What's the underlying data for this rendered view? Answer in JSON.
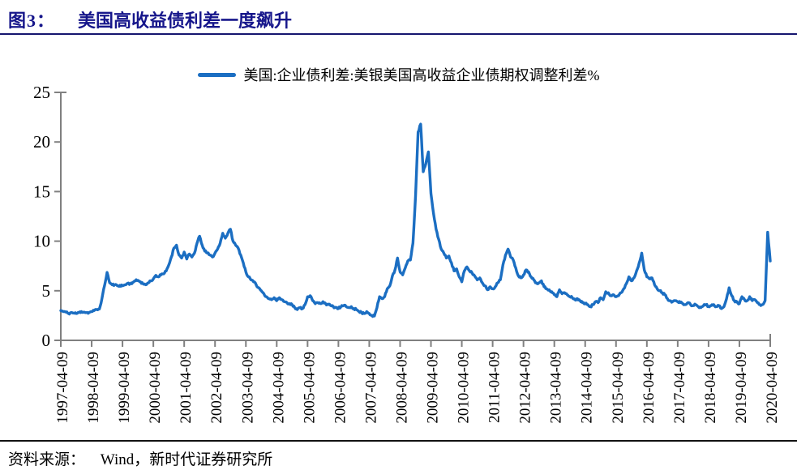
{
  "page": {
    "figure_label": "图3：",
    "title": "美国高收益债利差一度飙升",
    "source_label": "资料来源：",
    "source_text": "Wind，新时代证券研究所"
  },
  "legend": {
    "series_label": "美国:企业债利差:美银美国高收益企业债期权调整利差%"
  },
  "colors": {
    "line": "#1b6ec2",
    "axis": "#808080",
    "title": "#16168b",
    "rule": "#15156e",
    "text": "#000000"
  },
  "chart_data": {
    "type": "line",
    "title": "美国高收益债利差一度飙升",
    "xlabel": "",
    "ylabel": "",
    "unit": "%",
    "ylim": [
      0,
      25
    ],
    "y_ticks": [
      0,
      5,
      10,
      15,
      20,
      25
    ],
    "grid": false,
    "legend_position": "top-center",
    "x_tick_labels": [
      "1997-04-09",
      "1998-04-09",
      "1999-04-09",
      "2000-04-09",
      "2001-04-09",
      "2002-04-09",
      "2003-04-09",
      "2004-04-09",
      "2005-04-09",
      "2006-04-09",
      "2007-04-09",
      "2008-04-09",
      "2009-04-09",
      "2010-04-09",
      "2011-04-09",
      "2012-04-09",
      "2013-04-09",
      "2014-04-09",
      "2015-04-09",
      "2016-04-09",
      "2017-04-09",
      "2018-04-09",
      "2019-04-09",
      "2020-04-09"
    ],
    "series": [
      {
        "name": "美国:企业债利差:美银美国高收益企业债期权调整利差%",
        "color": "#1b6ec2",
        "frequency": "monthly",
        "start": "1997-04",
        "end": "2020-04",
        "values": [
          3.0,
          2.9,
          2.85,
          2.7,
          2.8,
          2.75,
          2.7,
          2.8,
          2.9,
          2.85,
          2.8,
          2.8,
          2.9,
          3.0,
          3.1,
          3.15,
          4.2,
          5.5,
          6.85,
          5.8,
          5.6,
          5.6,
          5.5,
          5.55,
          5.5,
          5.6,
          5.75,
          5.7,
          5.85,
          6.0,
          6.05,
          5.9,
          5.7,
          5.6,
          5.8,
          6.0,
          6.2,
          6.55,
          6.4,
          6.6,
          6.7,
          7.0,
          7.6,
          8.4,
          9.3,
          9.6,
          8.6,
          8.3,
          8.9,
          8.2,
          8.7,
          8.4,
          8.8,
          9.8,
          10.5,
          9.6,
          9.0,
          8.8,
          8.6,
          8.4,
          8.8,
          9.2,
          9.8,
          10.8,
          10.3,
          10.8,
          11.2,
          10.0,
          9.6,
          9.3,
          8.6,
          7.8,
          6.9,
          6.4,
          6.1,
          5.9,
          5.6,
          5.3,
          5.0,
          4.7,
          4.4,
          4.2,
          4.1,
          4.3,
          4.0,
          4.3,
          4.1,
          3.9,
          3.8,
          3.7,
          3.6,
          3.3,
          3.1,
          3.3,
          3.2,
          3.6,
          4.4,
          4.5,
          4.0,
          3.7,
          3.8,
          3.7,
          3.9,
          3.7,
          3.6,
          3.5,
          3.4,
          3.3,
          3.2,
          3.4,
          3.5,
          3.4,
          3.3,
          3.4,
          3.2,
          3.1,
          2.9,
          2.8,
          2.7,
          2.9,
          2.7,
          2.5,
          2.45,
          3.3,
          4.4,
          4.2,
          4.4,
          5.2,
          5.5,
          6.5,
          7.1,
          8.3,
          6.9,
          6.6,
          7.3,
          8.0,
          8.1,
          9.8,
          14.5,
          21.0,
          21.8,
          17.0,
          17.8,
          19.0,
          14.8,
          12.8,
          11.2,
          10.2,
          9.2,
          8.8,
          8.3,
          8.5,
          7.8,
          7.0,
          7.2,
          6.4,
          5.9,
          7.0,
          7.4,
          7.0,
          6.8,
          6.5,
          6.1,
          6.3,
          5.8,
          5.5,
          5.1,
          5.4,
          5.2,
          5.4,
          5.8,
          6.1,
          7.6,
          8.6,
          9.2,
          8.4,
          8.1,
          7.3,
          6.5,
          6.3,
          6.6,
          7.1,
          6.9,
          6.4,
          6.1,
          5.8,
          5.8,
          6.0,
          5.4,
          5.2,
          5.1,
          4.9,
          4.6,
          4.4,
          5.1,
          4.7,
          4.8,
          4.6,
          4.4,
          4.3,
          4.1,
          4.2,
          4.0,
          3.8,
          3.7,
          3.6,
          3.4,
          3.6,
          3.9,
          3.8,
          4.3,
          4.1,
          4.9,
          4.8,
          4.5,
          4.6,
          4.4,
          4.5,
          4.8,
          5.2,
          5.7,
          6.4,
          6.0,
          6.3,
          7.0,
          7.8,
          8.8,
          7.1,
          6.4,
          6.2,
          6.3,
          5.6,
          5.2,
          5.0,
          4.8,
          4.6,
          4.2,
          4.0,
          3.9,
          4.0,
          3.9,
          3.8,
          3.7,
          3.6,
          3.8,
          3.6,
          3.5,
          3.6,
          3.4,
          3.3,
          3.5,
          3.6,
          3.4,
          3.5,
          3.6,
          3.4,
          3.5,
          3.2,
          3.4,
          4.2,
          5.3,
          4.5,
          4.0,
          3.9,
          3.7,
          4.4,
          4.1,
          4.0,
          4.4,
          4.0,
          4.1,
          3.8,
          3.6,
          3.6,
          4.0,
          10.9,
          8.0
        ]
      }
    ]
  }
}
